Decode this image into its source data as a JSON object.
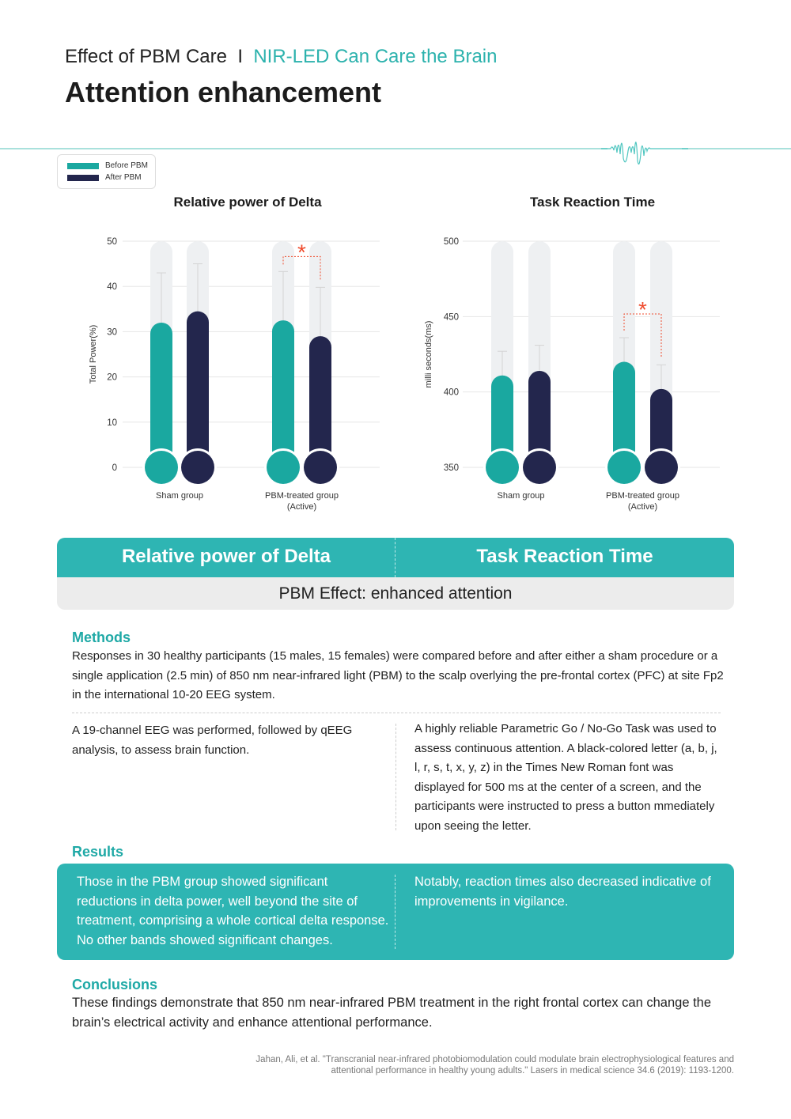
{
  "header": {
    "subtitle_left": "Effect of PBM Care",
    "subtitle_sep": "I",
    "subtitle_accent": "NIR-LED Can Care the Brain",
    "title": "Attention enhancement"
  },
  "colors": {
    "accent": "#2eb5b3",
    "before": "#1aa8a0",
    "after": "#23264d",
    "track": "#eef0f2",
    "significance": "#ef4b2d"
  },
  "legend": {
    "items": [
      {
        "label": "Before PBM",
        "color": "#1aa8a0"
      },
      {
        "label": "After PBM",
        "color": "#23264d"
      }
    ]
  },
  "chart_data": [
    {
      "type": "bar",
      "title": "Relative power of Delta",
      "ylabel": "Total Power(%)",
      "xlabel": "",
      "ylim": [
        0,
        50
      ],
      "yticks": [
        0,
        10,
        20,
        30,
        40,
        50
      ],
      "categories": [
        "Sham group",
        "PBM-treated group\n(Active)"
      ],
      "series": [
        {
          "name": "Before PBM",
          "values": [
            32,
            32.5
          ],
          "error_upper": [
            43,
            43.3
          ]
        },
        {
          "name": "After PBM",
          "values": [
            34.5,
            29
          ],
          "error_upper": [
            45,
            39.8
          ]
        }
      ],
      "significance": {
        "category": "PBM-treated group\n(Active)",
        "label": "*"
      },
      "grid": true
    },
    {
      "type": "bar",
      "title": "Task Reaction Time",
      "ylabel": "milli seconds(ms)",
      "xlabel": "",
      "ylim": [
        350,
        500
      ],
      "yticks": [
        350,
        400,
        450,
        500
      ],
      "categories": [
        "Sham group",
        "PBM-treated group\n(Active)"
      ],
      "series": [
        {
          "name": "Before PBM",
          "values": [
            411,
            420
          ],
          "error_upper": [
            427,
            436
          ]
        },
        {
          "name": "After PBM",
          "values": [
            414,
            402
          ],
          "error_upper": [
            431,
            418
          ]
        }
      ],
      "significance": {
        "category": "PBM-treated group\n(Active)",
        "label": "*"
      },
      "grid": true
    }
  ],
  "summary": {
    "left_label": "Relative power of Delta",
    "right_label": "Task Reaction Time",
    "effect": "PBM Effect: enhanced attention"
  },
  "methods": {
    "heading": "Methods",
    "text": "Responses in 30 healthy participants (15 males,  15 females) were compared before and after either a sham procedure or a single application (2.5 min) of 850 nm near-infrared light (PBM) to the scalp overlying the pre-frontal cortex (PFC) at site Fp2 in the international 10-20 EEG system.",
    "left": "A 19-channel EEG was performed, followed by qEEG analysis, to assess brain function.",
    "right": "A highly reliable Parametric Go / No-Go Task was used to assess continuous attention. A black-colored letter (a, b, j, l, r, s, t, x, y, z) in the Times New Roman font was displayed for 500 ms  at the center of a screen, and the participants were instructed to press a button mmediately upon seeing the letter."
  },
  "results": {
    "heading": "Results",
    "left": "Those in the PBM group showed significant reductions in delta power, well beyond the site of treatment, comprising a whole cortical delta response. No other bands showed significant changes.",
    "right": "Notably, reaction times also decreased indicative of improvements in vigilance."
  },
  "conclusions": {
    "heading": "Conclusions",
    "text": "These findings demonstrate that 850 nm near-infrared PBM treatment in the right frontal cortex can change the brain’s electrical activity and enhance attentional performance."
  },
  "citation": {
    "line1": "Jahan, Ali, et al. \"Transcranial near-infrared photobiomodulation could modulate brain electrophysiological features and",
    "line2": "attentional performance in healthy young adults.\" Lasers in medical science 34.6 (2019): 1193-1200."
  }
}
